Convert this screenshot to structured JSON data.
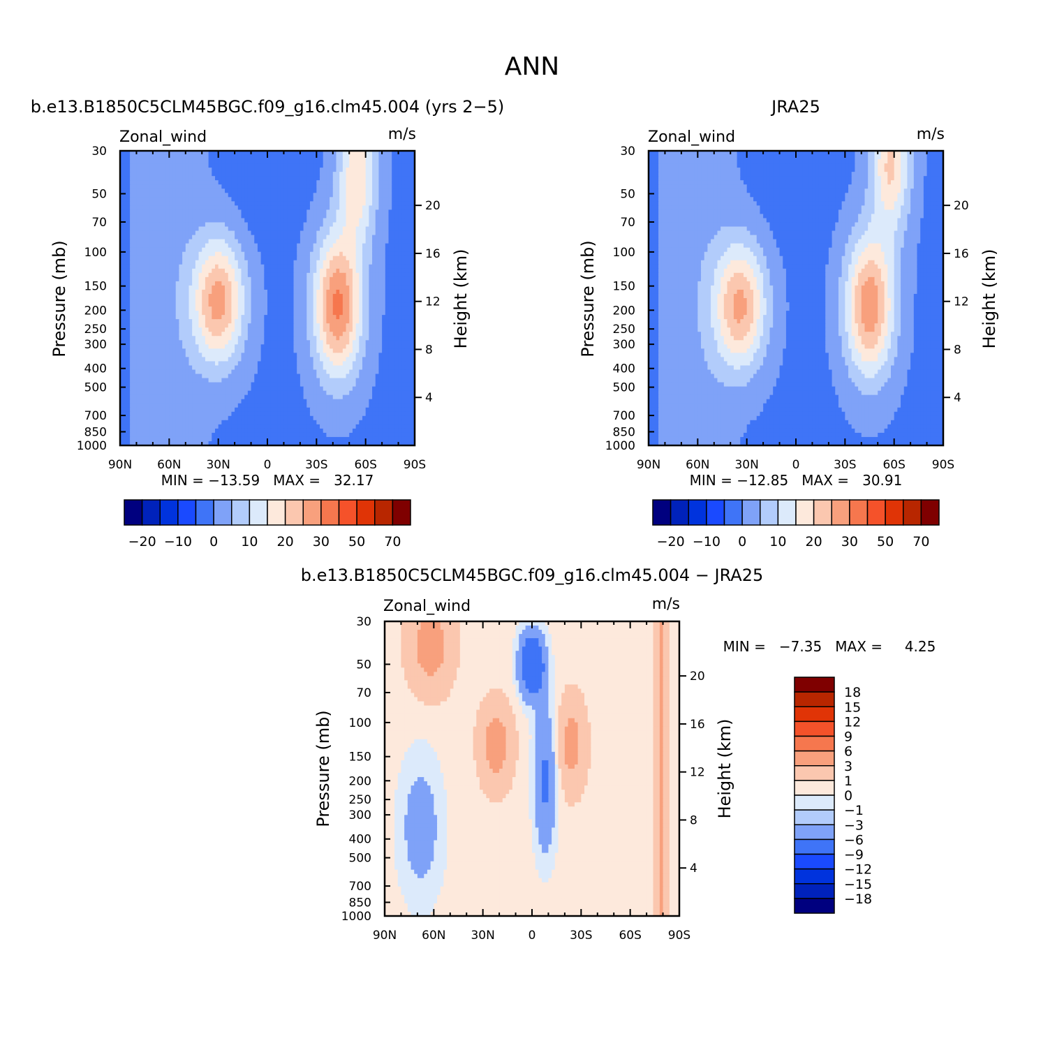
{
  "figure": {
    "title": "ANN"
  },
  "palette": {
    "labelbar_colors": [
      "#00007f",
      "#0022bb",
      "#0033dd",
      "#1a4aff",
      "#3f74f7",
      "#7fa2f8",
      "#b2ccfb",
      "#dceafb",
      "#fde9dc",
      "#fbc7af",
      "#f8a07d",
      "#f6774e",
      "#f5522a",
      "#e03406",
      "#b82600",
      "#7f0000"
    ],
    "fill_colors": {
      "-5": "#00007f",
      "-4": "#0022bb",
      "-3": "#0033dd",
      "-2": "#1a4aff",
      "-1": "#3f74f7",
      "0": "#7fa2f8",
      "1": "#b2ccfb",
      "2": "#dceafb",
      "3": "#fde9dc",
      "4": "#fbc7af",
      "5": "#f8a07d",
      "6": "#f6774e",
      "7": "#f5522a"
    },
    "diff_fill_colors": {
      "-2": "#3f74f7",
      "-1": "#7fa2f8",
      "0": "#b2ccfb",
      "1": "#dceafb",
      "2": "#fde9dc",
      "3": "#fbc7af",
      "4": "#f8a07d"
    },
    "diff_labelbar_colors": [
      "#00007f",
      "#0022bb",
      "#0033dd",
      "#1a4aff",
      "#3f74f7",
      "#7fa2f8",
      "#b2ccfb",
      "#dceafb",
      "#fde9dc",
      "#fbc7af",
      "#f8a07d",
      "#f6774e",
      "#f5522a",
      "#e03406",
      "#b82600",
      "#7f0000"
    ]
  },
  "chart_data": [
    {
      "id": "model",
      "type": "contour",
      "title": "b.e13.B1850C5CLM45BGC.f09_g16.clm45.004 (yrs 2−5)",
      "left_label": "Zonal_wind",
      "right_label": "m/s",
      "ylabel": "Pressure (mb)",
      "ylabel_right": "Height (km)",
      "x_ticks": [
        "90N",
        "60N",
        "30N",
        "0",
        "30S",
        "60S",
        "90S"
      ],
      "y_ticks": [
        "30",
        "50",
        "70",
        "100",
        "150",
        "200",
        "250",
        "300",
        "400",
        "500",
        "700",
        "850",
        "1000"
      ],
      "height_ticks": [
        "20",
        "16",
        "12",
        "8",
        "4"
      ],
      "stats": "MIN = −13.59   MAX =   32.17",
      "min": -13.59,
      "max": 32.17,
      "colorbar_labels": [
        "−20",
        "−10",
        "0",
        "10",
        "20",
        "30",
        "50",
        "70"
      ],
      "jets": [
        {
          "lat": 30,
          "p": 180,
          "amp": 28
        },
        {
          "lat": -43,
          "p": 190,
          "amp": 32
        },
        {
          "lat": -55,
          "p": 40,
          "amp": 20
        }
      ]
    },
    {
      "id": "obs",
      "type": "contour",
      "title": "JRA25",
      "left_label": "Zonal_wind",
      "right_label": "m/s",
      "ylabel": "Pressure (mb)",
      "ylabel_right": "Height (km)",
      "x_ticks": [
        "90N",
        "60N",
        "30N",
        "0",
        "30S",
        "60S",
        "90S"
      ],
      "y_ticks": [
        "30",
        "50",
        "70",
        "100",
        "150",
        "200",
        "250",
        "300",
        "400",
        "500",
        "700",
        "850",
        "1000"
      ],
      "height_ticks": [
        "20",
        "16",
        "12",
        "8",
        "4"
      ],
      "stats": "MIN = −12.85   MAX =   30.91",
      "min": -12.85,
      "max": 30.91,
      "colorbar_labels": [
        "−20",
        "−10",
        "0",
        "10",
        "20",
        "30",
        "50",
        "70"
      ],
      "jets": [
        {
          "lat": 34,
          "p": 190,
          "amp": 27
        },
        {
          "lat": -45,
          "p": 190,
          "amp": 30
        },
        {
          "lat": -58,
          "p": 35,
          "amp": 22
        }
      ]
    },
    {
      "id": "diff",
      "type": "contour",
      "title": "b.e13.B1850C5CLM45BGC.f09_g16.clm45.004 − JRA25",
      "left_label": "Zonal_wind",
      "right_label": "m/s",
      "ylabel": "Pressure (mb)",
      "ylabel_right": "Height (km)",
      "x_ticks": [
        "90N",
        "60N",
        "30N",
        "0",
        "30S",
        "60S",
        "90S"
      ],
      "y_ticks": [
        "30",
        "50",
        "70",
        "100",
        "150",
        "200",
        "250",
        "300",
        "400",
        "500",
        "700",
        "850",
        "1000"
      ],
      "height_ticks": [
        "20",
        "16",
        "12",
        "8",
        "4"
      ],
      "stats": "MIN =   −7.35   MAX =     4.25",
      "min": -7.35,
      "max": 4.25,
      "colorbar_labels": [
        "18",
        "15",
        "12",
        "9",
        "6",
        "3",
        "1",
        "0",
        "−1",
        "−3",
        "−6",
        "−9",
        "−12",
        "−15",
        "−18"
      ]
    }
  ]
}
